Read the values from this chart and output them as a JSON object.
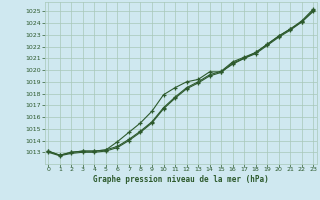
{
  "title": "Graphe pression niveau de la mer (hPa)",
  "bg_color": "#cfe8f0",
  "line_color": "#2d5a2d",
  "grid_color": "#a8c8b8",
  "x_values": [
    0,
    1,
    2,
    3,
    4,
    5,
    6,
    7,
    8,
    9,
    10,
    11,
    12,
    13,
    14,
    15,
    16,
    17,
    18,
    19,
    20,
    21,
    22,
    23
  ],
  "line1": [
    1013.1,
    1012.75,
    1013.0,
    1013.1,
    1013.1,
    1013.2,
    1013.5,
    1014.1,
    1014.8,
    1015.6,
    1016.8,
    1017.7,
    1018.5,
    1019.0,
    1019.6,
    1019.9,
    1020.7,
    1021.1,
    1021.5,
    1022.2,
    1022.9,
    1023.5,
    1024.2,
    1025.2
  ],
  "line2": [
    1013.1,
    1012.75,
    1013.0,
    1013.1,
    1013.1,
    1013.2,
    1013.9,
    1014.7,
    1015.5,
    1016.5,
    1017.9,
    1018.5,
    1019.0,
    1019.2,
    1019.85,
    1019.85,
    1020.5,
    1021.0,
    1021.5,
    1022.2,
    1022.9,
    1023.5,
    1024.1,
    1025.0
  ],
  "line3": [
    1013.0,
    1012.7,
    1012.9,
    1013.0,
    1013.0,
    1013.1,
    1013.4,
    1014.0,
    1014.7,
    1015.5,
    1016.7,
    1017.6,
    1018.4,
    1018.9,
    1019.5,
    1019.8,
    1020.6,
    1021.0,
    1021.4,
    1022.1,
    1022.8,
    1023.4,
    1024.1,
    1025.1
  ],
  "ylim_min": 1012.0,
  "ylim_max": 1025.8,
  "ytick_min": 1013,
  "ytick_max": 1025,
  "ytick_step": 1,
  "xlim_min": -0.3,
  "xlim_max": 23.3,
  "figwidth": 3.2,
  "figheight": 2.0,
  "dpi": 100
}
